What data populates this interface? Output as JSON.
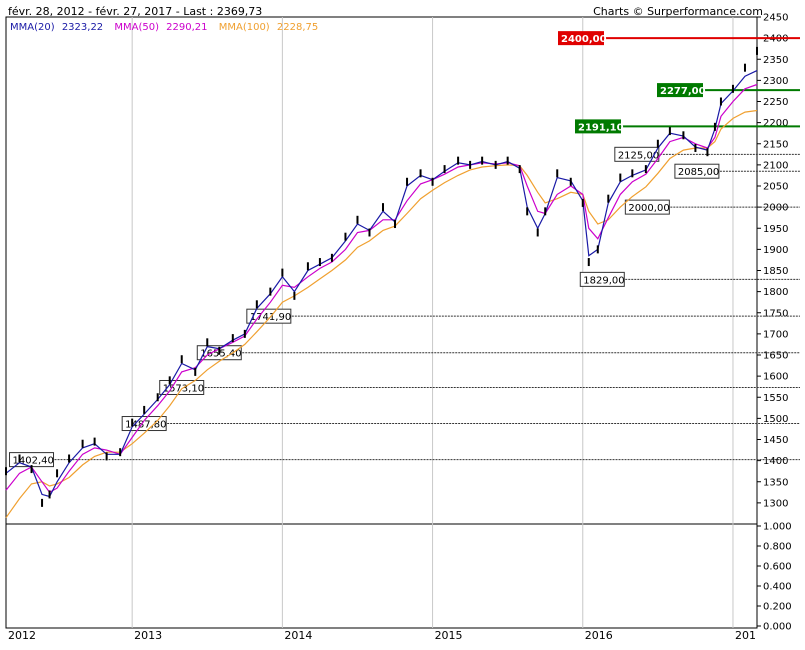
{
  "header": {
    "range": "févr. 28, 2012 - févr. 27, 2017 - Last : 2369,73",
    "credit": "Charts © Surperformance.com"
  },
  "legend": [
    {
      "name": "MMA(20)",
      "value": "2323,22",
      "color": "#1a1aa6"
    },
    {
      "name": "MMA(50)",
      "value": "2290,21",
      "color": "#cc00cc"
    },
    {
      "name": "MMA(100)",
      "value": "2228,75",
      "color": "#f0a030"
    }
  ],
  "chart_data": {
    "type": "line",
    "price_ylim": [
      1250,
      2450
    ],
    "price_ticks": [
      "1300",
      "1350",
      "1400",
      "1450",
      "1500",
      "1550",
      "1600",
      "1650",
      "1700",
      "1750",
      "1800",
      "1850",
      "1900",
      "1950",
      "2000",
      "2050",
      "2100",
      "2150",
      "2200",
      "2250",
      "2300",
      "2350",
      "2400",
      "2450"
    ],
    "indicator_ylim": [
      0,
      1
    ],
    "indicator_ticks": [
      "0.000",
      "0.200",
      "0.400",
      "0.600",
      "0.800",
      "1.000"
    ],
    "x_years": [
      {
        "label": "2012",
        "t": 2012.0
      },
      {
        "label": "2013",
        "t": 2013.0
      },
      {
        "label": "2014",
        "t": 2014.0
      },
      {
        "label": "2015",
        "t": 2015.0
      },
      {
        "label": "2016",
        "t": 2016.0
      },
      {
        "label": "201",
        "t": 2017.0
      }
    ],
    "xlim": [
      2012.16,
      2017.16
    ],
    "close_series": {
      "name": "Close",
      "t": [
        2012.16,
        2012.25,
        2012.33,
        2012.4,
        2012.45,
        2012.5,
        2012.58,
        2012.67,
        2012.75,
        2012.83,
        2012.92,
        2013.0,
        2013.08,
        2013.17,
        2013.25,
        2013.33,
        2013.42,
        2013.5,
        2013.58,
        2013.67,
        2013.75,
        2013.83,
        2013.92,
        2014.0,
        2014.08,
        2014.17,
        2014.25,
        2014.33,
        2014.42,
        2014.5,
        2014.58,
        2014.67,
        2014.75,
        2014.83,
        2014.92,
        2015.0,
        2015.08,
        2015.17,
        2015.25,
        2015.33,
        2015.42,
        2015.5,
        2015.58,
        2015.63,
        2015.7,
        2015.75,
        2015.83,
        2015.92,
        2016.0,
        2016.04,
        2016.1,
        2016.17,
        2016.25,
        2016.33,
        2016.42,
        2016.5,
        2016.58,
        2016.67,
        2016.75,
        2016.83,
        2016.88,
        2016.92,
        2017.0,
        2017.08,
        2017.16
      ],
      "values": [
        1375,
        1405,
        1380,
        1300,
        1320,
        1370,
        1405,
        1440,
        1445,
        1410,
        1420,
        1490,
        1520,
        1550,
        1590,
        1640,
        1610,
        1680,
        1660,
        1690,
        1700,
        1770,
        1800,
        1845,
        1790,
        1860,
        1870,
        1880,
        1930,
        1970,
        1940,
        2000,
        1960,
        2060,
        2080,
        2060,
        2090,
        2110,
        2100,
        2110,
        2100,
        2110,
        2090,
        1990,
        1940,
        1990,
        2080,
        2060,
        2010,
        1870,
        1900,
        2020,
        2070,
        2080,
        2090,
        2150,
        2180,
        2170,
        2140,
        2130,
        2190,
        2250,
        2280,
        2330,
        2369.73
      ]
    },
    "moving_averages": [
      {
        "name": "MMA(20)",
        "color": "#1a1aa6",
        "values": [
          1370,
          1395,
          1385,
          1320,
          1315,
          1350,
          1395,
          1430,
          1440,
          1415,
          1415,
          1480,
          1510,
          1545,
          1580,
          1630,
          1615,
          1670,
          1665,
          1685,
          1700,
          1760,
          1795,
          1835,
          1800,
          1850,
          1865,
          1880,
          1920,
          1960,
          1945,
          1990,
          1965,
          2050,
          2075,
          2065,
          2085,
          2105,
          2100,
          2108,
          2100,
          2108,
          2092,
          2000,
          1950,
          1985,
          2070,
          2062,
          2015,
          1885,
          1900,
          2010,
          2060,
          2075,
          2088,
          2140,
          2175,
          2168,
          2142,
          2135,
          2185,
          2245,
          2275,
          2310,
          2323.22
        ]
      },
      {
        "name": "MMA(50)",
        "color": "#cc00cc",
        "values": [
          1330,
          1370,
          1385,
          1350,
          1325,
          1335,
          1375,
          1415,
          1430,
          1425,
          1415,
          1455,
          1495,
          1530,
          1565,
          1610,
          1620,
          1650,
          1665,
          1680,
          1695,
          1735,
          1775,
          1815,
          1810,
          1835,
          1855,
          1870,
          1900,
          1940,
          1945,
          1970,
          1970,
          2015,
          2055,
          2065,
          2078,
          2095,
          2100,
          2105,
          2102,
          2105,
          2098,
          2050,
          1990,
          1985,
          2030,
          2050,
          2030,
          1950,
          1925,
          1975,
          2030,
          2060,
          2078,
          2115,
          2155,
          2165,
          2150,
          2140,
          2165,
          2215,
          2250,
          2280,
          2290.21
        ]
      },
      {
        "name": "MMA(100)",
        "color": "#f0a030",
        "values": [
          1265,
          1310,
          1345,
          1350,
          1340,
          1345,
          1360,
          1390,
          1410,
          1420,
          1420,
          1440,
          1465,
          1495,
          1530,
          1570,
          1590,
          1615,
          1635,
          1655,
          1675,
          1705,
          1740,
          1775,
          1790,
          1810,
          1830,
          1850,
          1875,
          1905,
          1920,
          1945,
          1955,
          1985,
          2020,
          2040,
          2058,
          2075,
          2088,
          2095,
          2098,
          2100,
          2098,
          2075,
          2035,
          2010,
          2020,
          2035,
          2030,
          1990,
          1960,
          1970,
          2000,
          2025,
          2048,
          2080,
          2115,
          2135,
          2140,
          2140,
          2155,
          2185,
          2210,
          2225,
          2228.75
        ]
      }
    ],
    "levels": [
      {
        "label": "2400,00",
        "value": 2400,
        "style": "red"
      },
      {
        "label": "2277,00",
        "value": 2277,
        "style": "green"
      },
      {
        "label": "2191,10",
        "value": 2191.1,
        "style": "green"
      },
      {
        "label": "2125,00",
        "value": 2125,
        "style": "box"
      },
      {
        "label": "2085,00",
        "value": 2085,
        "style": "box"
      },
      {
        "label": "2000,00",
        "value": 2000,
        "style": "box"
      },
      {
        "label": "1829,00",
        "value": 1829,
        "style": "box"
      },
      {
        "label": "1741,90",
        "value": 1741.9,
        "style": "box"
      },
      {
        "label": "1655,40",
        "value": 1655.4,
        "style": "box"
      },
      {
        "label": "1573,10",
        "value": 1573.1,
        "style": "box"
      },
      {
        "label": "1487,80",
        "value": 1487.8,
        "style": "box"
      },
      {
        "label": "1402,40",
        "value": 1402.4,
        "style": "box"
      }
    ]
  }
}
